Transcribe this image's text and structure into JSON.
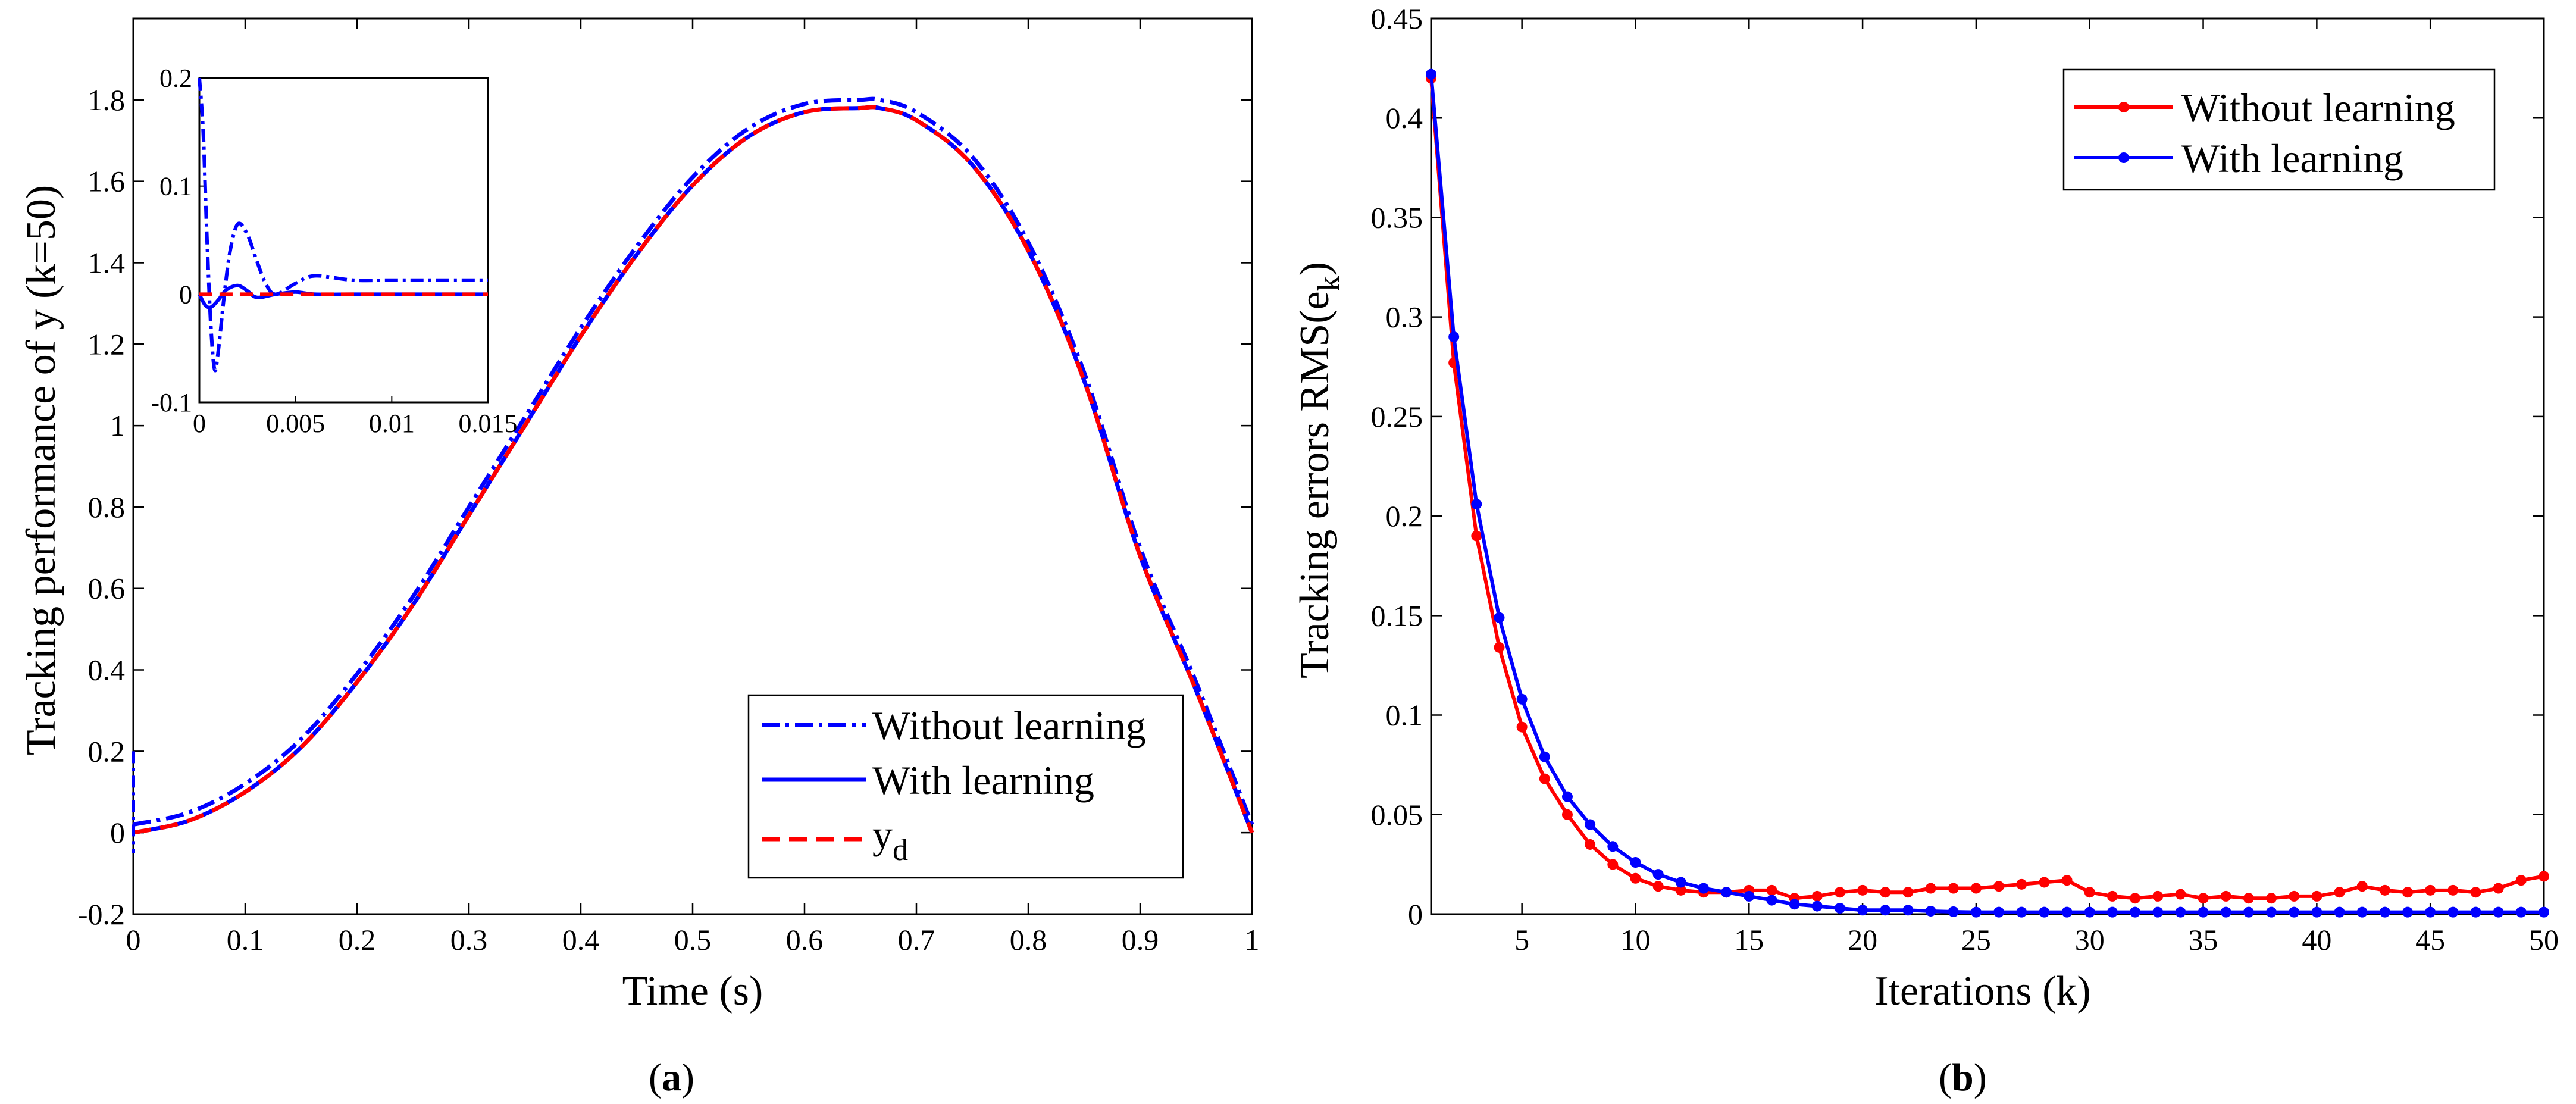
{
  "chart_data": [
    {
      "type": "line",
      "panel": "(a)",
      "panel_letter": "a",
      "xlabel": "Time (s)",
      "ylabel": "Tracking performance of y (k=50)",
      "xlim": [
        0,
        1
      ],
      "ylim": [
        -0.2,
        2.0
      ],
      "xticks": [
        "0",
        "0.1",
        "0.2",
        "0.3",
        "0.4",
        "0.5",
        "0.6",
        "0.7",
        "0.8",
        "0.9",
        "1"
      ],
      "yticks": [
        "-0.2",
        "0",
        "0.2",
        "0.4",
        "0.6",
        "0.8",
        "1",
        "1.2",
        "1.4",
        "1.6",
        "1.8"
      ],
      "legend_position": "bottom-right",
      "legend": [
        "Without learning",
        "With learning",
        "y",
        "d"
      ],
      "series": [
        {
          "name": "Without learning",
          "style": "dashdot",
          "color": "#0000ff",
          "x": [
            0,
            0.05,
            0.1,
            0.15,
            0.2,
            0.25,
            0.3,
            0.35,
            0.4,
            0.45,
            0.5,
            0.55,
            0.6,
            0.65,
            0.667,
            0.7,
            0.75,
            0.8,
            0.85,
            0.9,
            0.95,
            1.0
          ],
          "y": [
            0.02,
            0.05,
            0.12,
            0.23,
            0.39,
            0.58,
            0.8,
            1.02,
            1.24,
            1.44,
            1.61,
            1.73,
            1.79,
            1.8,
            1.8,
            1.77,
            1.66,
            1.45,
            1.13,
            0.7,
            0.37,
            0.02
          ]
        },
        {
          "name": "With learning",
          "style": "solid",
          "color": "#0000ff",
          "x": [
            0,
            0.05,
            0.1,
            0.15,
            0.2,
            0.25,
            0.3,
            0.35,
            0.4,
            0.45,
            0.5,
            0.55,
            0.6,
            0.65,
            0.667,
            0.7,
            0.75,
            0.8,
            0.85,
            0.9,
            0.95,
            1.0
          ],
          "y": [
            0.0,
            0.03,
            0.1,
            0.21,
            0.37,
            0.56,
            0.78,
            1.0,
            1.22,
            1.42,
            1.59,
            1.71,
            1.77,
            1.78,
            1.78,
            1.75,
            1.64,
            1.43,
            1.11,
            0.68,
            0.35,
            0.0
          ]
        },
        {
          "name": "y_d",
          "style": "dashed",
          "color": "#ff0000",
          "x": [
            0,
            0.05,
            0.1,
            0.15,
            0.2,
            0.25,
            0.3,
            0.35,
            0.4,
            0.45,
            0.5,
            0.55,
            0.6,
            0.65,
            0.667,
            0.7,
            0.75,
            0.8,
            0.85,
            0.9,
            0.95,
            1.0
          ],
          "y": [
            0.0,
            0.03,
            0.1,
            0.21,
            0.37,
            0.56,
            0.78,
            1.0,
            1.22,
            1.42,
            1.59,
            1.71,
            1.77,
            1.78,
            1.78,
            1.75,
            1.64,
            1.43,
            1.11,
            0.68,
            0.35,
            0.0
          ]
        }
      ],
      "inset": {
        "xlim": [
          0,
          0.015
        ],
        "ylim": [
          -0.1,
          0.2
        ],
        "xticks": [
          "0",
          "0.005",
          "0.01",
          "0.015"
        ],
        "yticks": [
          "-0.1",
          "0",
          "0.1",
          "0.2"
        ],
        "series": [
          {
            "name": "Without learning",
            "style": "dashdot",
            "color": "#0000ff",
            "x": [
              0,
              0.0002,
              0.0004,
              0.0006,
              0.0008,
              0.001,
              0.0013,
              0.0016,
              0.002,
              0.0025,
              0.003,
              0.0035,
              0.004,
              0.005,
              0.006,
              0.008,
              0.01,
              0.012,
              0.015
            ],
            "y": [
              0.2,
              0.15,
              0.05,
              -0.03,
              -0.07,
              -0.05,
              0.0,
              0.04,
              0.065,
              0.055,
              0.03,
              0.008,
              0.0,
              0.01,
              0.017,
              0.013,
              0.013,
              0.013,
              0.013
            ]
          },
          {
            "name": "With learning",
            "style": "solid",
            "color": "#0000ff",
            "x": [
              0,
              0.0003,
              0.0006,
              0.001,
              0.0014,
              0.002,
              0.0025,
              0.003,
              0.004,
              0.005,
              0.006,
              0.008,
              0.01,
              0.012,
              0.015
            ],
            "y": [
              0.0,
              -0.01,
              -0.012,
              -0.005,
              0.004,
              0.008,
              0.003,
              -0.003,
              0.0,
              0.002,
              0.0,
              0.0,
              0.0,
              0.0,
              0.0
            ]
          },
          {
            "name": "y_d",
            "style": "dashed",
            "color": "#ff0000",
            "x": [
              0,
              0.005,
              0.01,
              0.015
            ],
            "y": [
              0.0,
              0.0,
              0.0,
              0.0
            ]
          }
        ]
      }
    },
    {
      "type": "line",
      "panel": "(b)",
      "panel_letter": "b",
      "xlabel": "Iterations (k)",
      "ylabel": "Tracking errors RMS(e",
      "ylabel_sub": "k",
      "ylabel_close": ")",
      "xlim": [
        1,
        50
      ],
      "ylim": [
        0,
        0.45
      ],
      "xticks": [
        "5",
        "10",
        "15",
        "20",
        "25",
        "30",
        "35",
        "40",
        "45",
        "50"
      ],
      "yticks": [
        "0",
        "0.05",
        "0.1",
        "0.15",
        "0.2",
        "0.25",
        "0.3",
        "0.35",
        "0.4",
        "0.45"
      ],
      "legend_position": "top-right",
      "legend": [
        "Without learning",
        "With learning"
      ],
      "series": [
        {
          "name": "Without learning",
          "color": "#ff0000",
          "marker": "circle",
          "x": [
            1,
            2,
            3,
            4,
            5,
            6,
            7,
            8,
            9,
            10,
            11,
            12,
            13,
            14,
            15,
            16,
            17,
            18,
            19,
            20,
            21,
            22,
            23,
            24,
            25,
            26,
            27,
            28,
            29,
            30,
            31,
            32,
            33,
            34,
            35,
            36,
            37,
            38,
            39,
            40,
            41,
            42,
            43,
            44,
            45,
            46,
            47,
            48,
            49,
            50
          ],
          "y": [
            0.42,
            0.277,
            0.19,
            0.134,
            0.094,
            0.068,
            0.05,
            0.035,
            0.025,
            0.018,
            0.014,
            0.012,
            0.011,
            0.011,
            0.012,
            0.012,
            0.008,
            0.009,
            0.011,
            0.012,
            0.011,
            0.011,
            0.013,
            0.013,
            0.013,
            0.014,
            0.015,
            0.016,
            0.017,
            0.011,
            0.009,
            0.008,
            0.009,
            0.01,
            0.008,
            0.009,
            0.008,
            0.008,
            0.009,
            0.009,
            0.011,
            0.014,
            0.012,
            0.011,
            0.012,
            0.012,
            0.011,
            0.013,
            0.017,
            0.019
          ]
        },
        {
          "name": "With learning",
          "color": "#0000ff",
          "marker": "circle",
          "x": [
            1,
            2,
            3,
            4,
            5,
            6,
            7,
            8,
            9,
            10,
            11,
            12,
            13,
            14,
            15,
            16,
            17,
            18,
            19,
            20,
            21,
            22,
            23,
            24,
            25,
            26,
            27,
            28,
            29,
            30,
            31,
            32,
            33,
            34,
            35,
            36,
            37,
            38,
            39,
            40,
            41,
            42,
            43,
            44,
            45,
            46,
            47,
            48,
            49,
            50
          ],
          "y": [
            0.422,
            0.29,
            0.206,
            0.149,
            0.108,
            0.079,
            0.059,
            0.045,
            0.034,
            0.026,
            0.02,
            0.016,
            0.013,
            0.011,
            0.009,
            0.007,
            0.005,
            0.004,
            0.003,
            0.002,
            0.002,
            0.002,
            0.0015,
            0.0012,
            0.001,
            0.001,
            0.001,
            0.001,
            0.001,
            0.001,
            0.001,
            0.001,
            0.001,
            0.001,
            0.001,
            0.001,
            0.001,
            0.001,
            0.001,
            0.001,
            0.001,
            0.001,
            0.001,
            0.001,
            0.001,
            0.001,
            0.001,
            0.001,
            0.001,
            0.001
          ]
        }
      ]
    }
  ]
}
